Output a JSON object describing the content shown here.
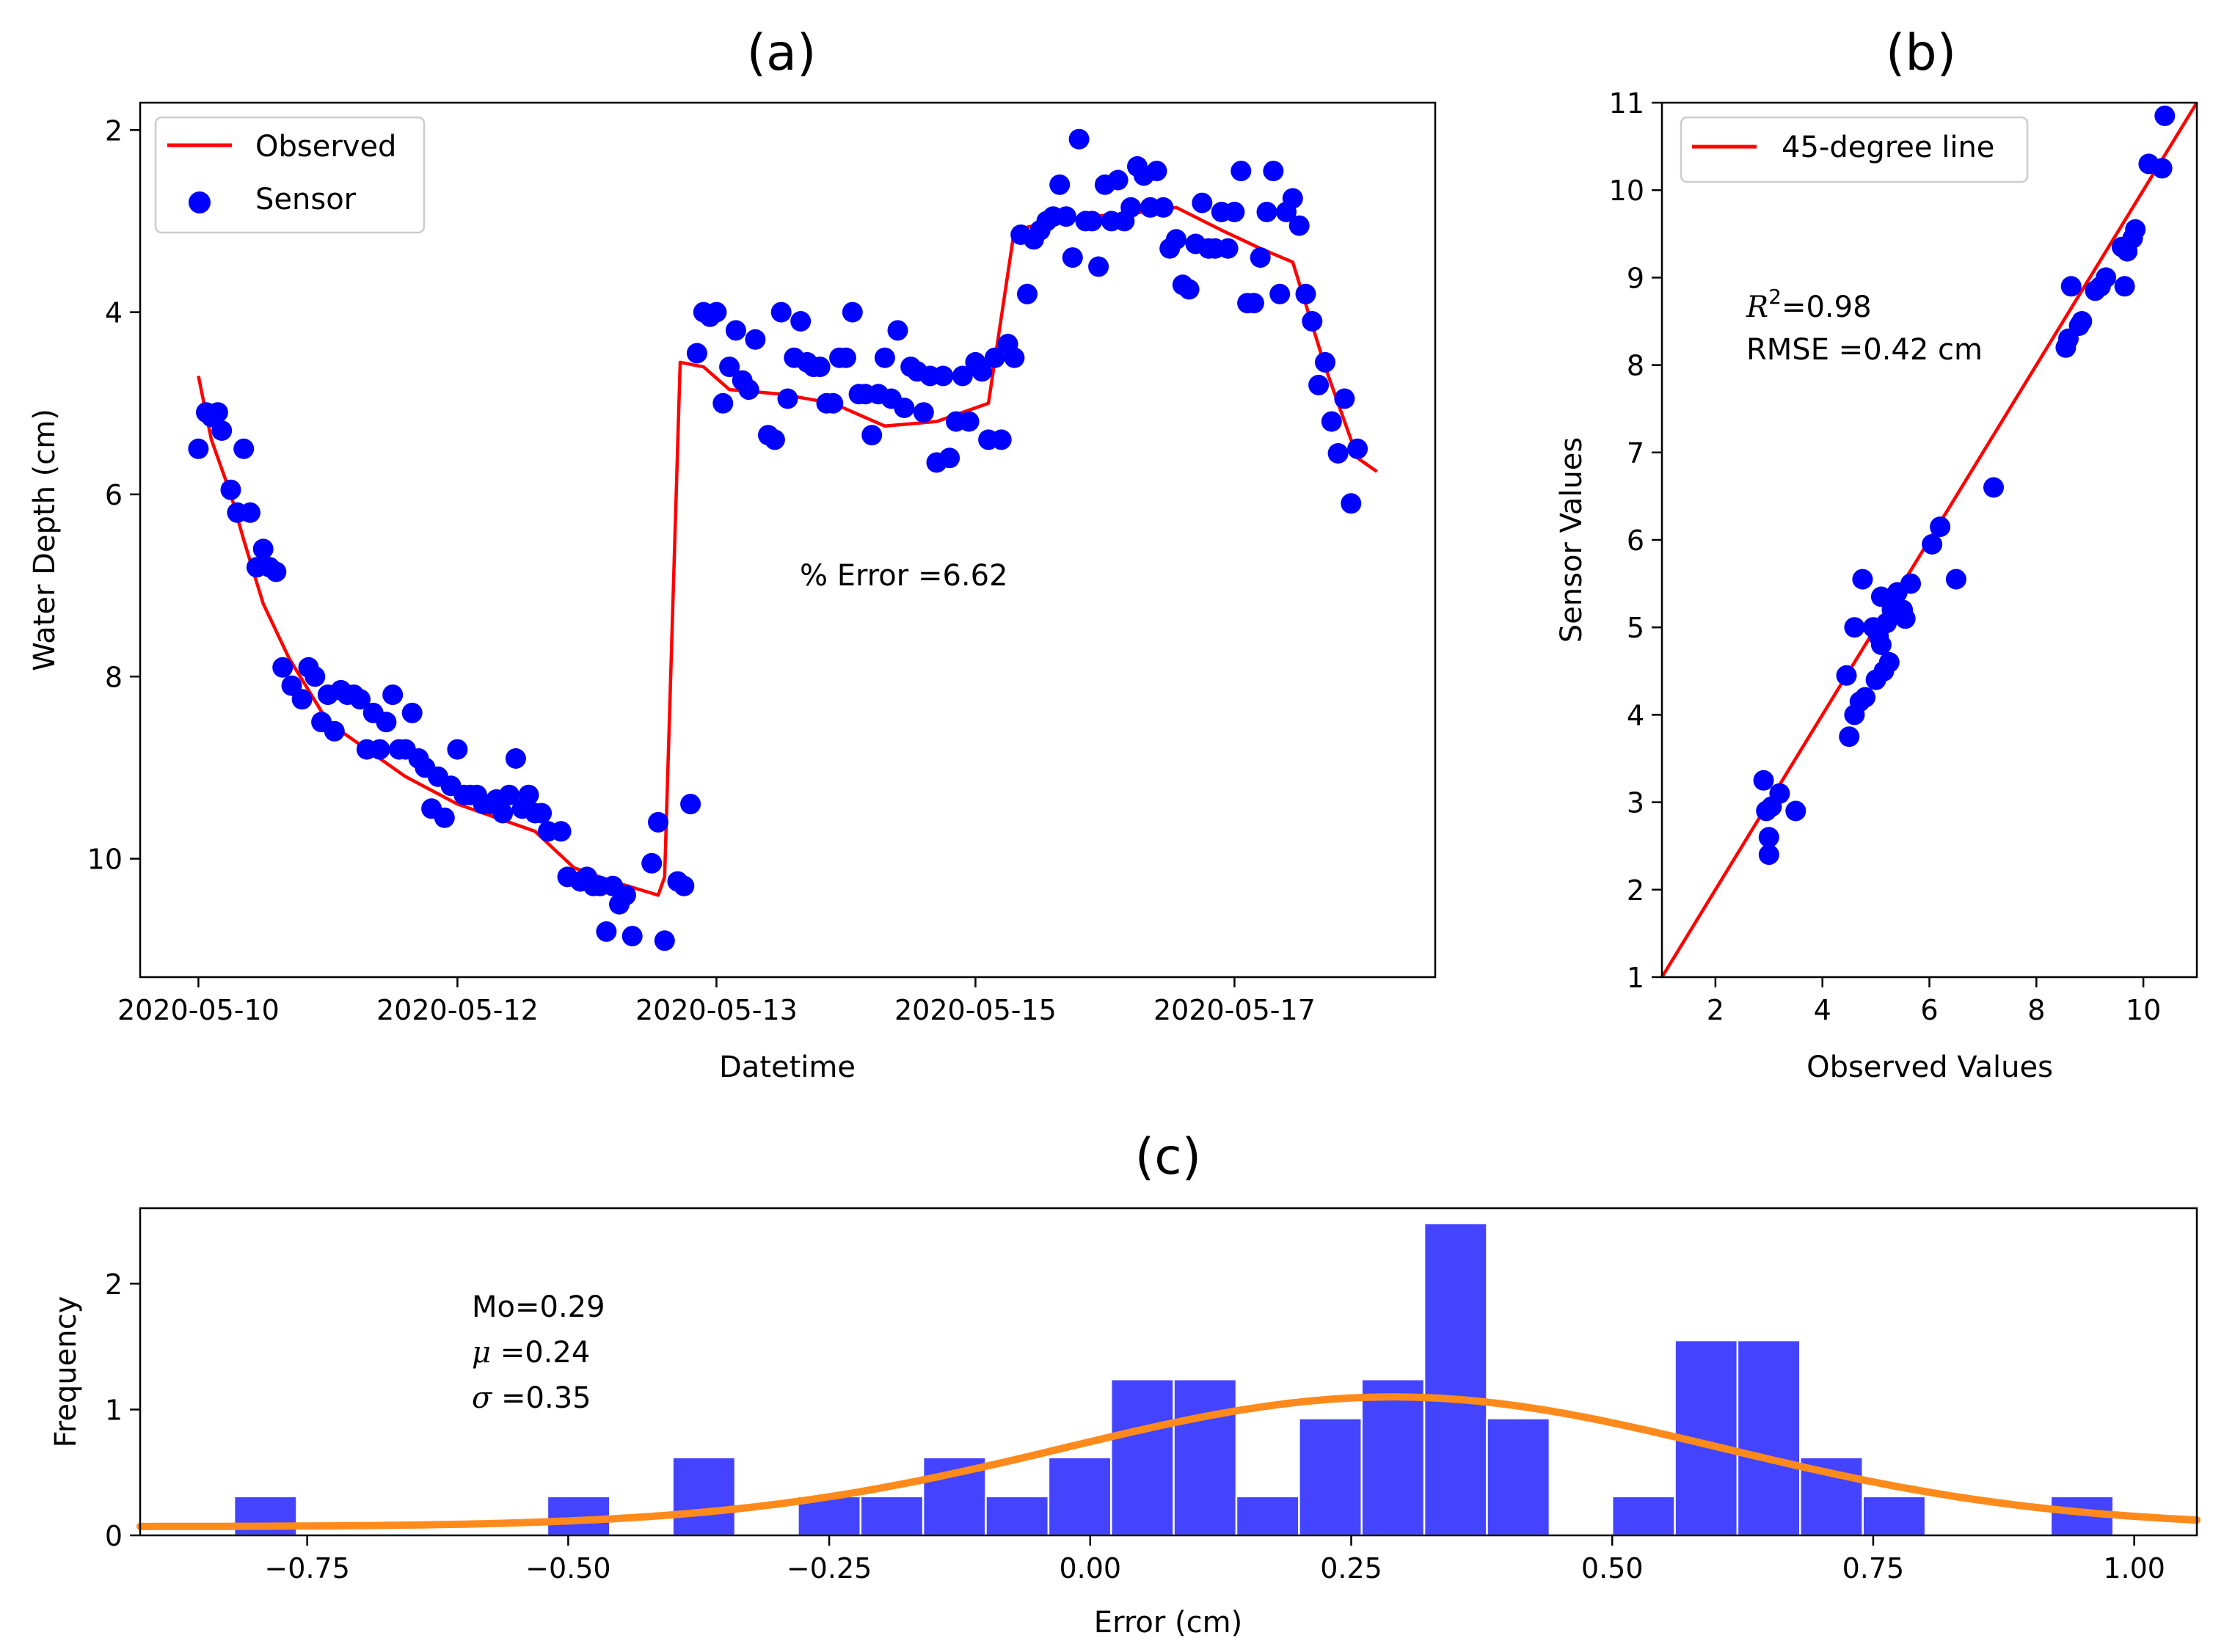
{
  "colors": {
    "observed": "#ff0000",
    "sensor": "#0000ff",
    "line45": "#ff0000",
    "hist_bar": "#4444ff",
    "hist_edge": "#ffffff",
    "kde": "#ff8a1c",
    "legend_border": "#cccccc"
  },
  "chart_data": [
    {
      "id": "a",
      "panel_label": "(a)",
      "type": "line+scatter",
      "xlabel": "Datetime",
      "ylabel": "Water Depth (cm)",
      "y_inverted": true,
      "xlim": [
        -0.45,
        9.55
      ],
      "ylim": [
        11.3,
        1.7
      ],
      "x_ticks": [
        {
          "v": 0,
          "label": "2020-05-10"
        },
        {
          "v": 2,
          "label": "2020-05-12"
        },
        {
          "v": 4,
          "label": "2020-05-13"
        },
        {
          "v": 6,
          "label": "2020-05-15"
        },
        {
          "v": 8,
          "label": "2020-05-17"
        }
      ],
      "y_ticks": [
        {
          "v": 2,
          "label": "2"
        },
        {
          "v": 4,
          "label": "4"
        },
        {
          "v": 6,
          "label": "6"
        },
        {
          "v": 8,
          "label": "8"
        },
        {
          "v": 10,
          "label": "10"
        }
      ],
      "annotation": "% Error =6.62",
      "legend": {
        "position": "upper left",
        "entries": [
          {
            "label": "Observed",
            "kind": "line"
          },
          {
            "label": "Sensor",
            "kind": "marker"
          }
        ]
      },
      "observed": [
        [
          0,
          4.7
        ],
        [
          0.1,
          5.4
        ],
        [
          0.25,
          6.0
        ],
        [
          0.35,
          6.5
        ],
        [
          0.5,
          7.2
        ],
        [
          0.7,
          7.8
        ],
        [
          1.0,
          8.5
        ],
        [
          1.3,
          8.8
        ],
        [
          1.6,
          9.1
        ],
        [
          2.0,
          9.4
        ],
        [
          2.3,
          9.55
        ],
        [
          2.6,
          9.7
        ],
        [
          2.9,
          10.1
        ],
        [
          3.2,
          10.25
        ],
        [
          3.55,
          10.4
        ],
        [
          3.6,
          10.2
        ],
        [
          3.72,
          4.55
        ],
        [
          3.9,
          4.6
        ],
        [
          4.1,
          4.85
        ],
        [
          4.5,
          4.9
        ],
        [
          4.9,
          5.0
        ],
        [
          5.3,
          5.25
        ],
        [
          5.7,
          5.2
        ],
        [
          6.1,
          5.0
        ],
        [
          6.3,
          3.1
        ],
        [
          6.6,
          3.0
        ],
        [
          6.9,
          2.95
        ],
        [
          7.3,
          2.9
        ],
        [
          7.55,
          2.85
        ],
        [
          7.9,
          3.1
        ],
        [
          8.2,
          3.3
        ],
        [
          8.45,
          3.45
        ],
        [
          8.7,
          4.6
        ],
        [
          8.95,
          5.6
        ],
        [
          9.1,
          5.75
        ]
      ],
      "sensor": [
        [
          0.0,
          5.5
        ],
        [
          0.06,
          5.1
        ],
        [
          0.1,
          5.15
        ],
        [
          0.15,
          5.1
        ],
        [
          0.18,
          5.3
        ],
        [
          0.25,
          5.95
        ],
        [
          0.3,
          6.2
        ],
        [
          0.35,
          5.5
        ],
        [
          0.4,
          6.2
        ],
        [
          0.45,
          6.8
        ],
        [
          0.5,
          6.6
        ],
        [
          0.55,
          6.8
        ],
        [
          0.6,
          6.85
        ],
        [
          0.65,
          7.9
        ],
        [
          0.72,
          8.1
        ],
        [
          0.8,
          8.25
        ],
        [
          0.85,
          7.9
        ],
        [
          0.9,
          8.0
        ],
        [
          0.95,
          8.5
        ],
        [
          1.0,
          8.2
        ],
        [
          1.05,
          8.6
        ],
        [
          1.1,
          8.15
        ],
        [
          1.15,
          8.2
        ],
        [
          1.2,
          8.2
        ],
        [
          1.25,
          8.25
        ],
        [
          1.3,
          8.8
        ],
        [
          1.35,
          8.4
        ],
        [
          1.4,
          8.8
        ],
        [
          1.45,
          8.5
        ],
        [
          1.5,
          8.2
        ],
        [
          1.55,
          8.8
        ],
        [
          1.6,
          8.8
        ],
        [
          1.65,
          8.4
        ],
        [
          1.7,
          8.9
        ],
        [
          1.75,
          9.0
        ],
        [
          1.8,
          9.45
        ],
        [
          1.85,
          9.1
        ],
        [
          1.9,
          9.55
        ],
        [
          1.95,
          9.2
        ],
        [
          2.0,
          8.8
        ],
        [
          2.05,
          9.3
        ],
        [
          2.1,
          9.3
        ],
        [
          2.15,
          9.3
        ],
        [
          2.2,
          9.4
        ],
        [
          2.25,
          9.4
        ],
        [
          2.3,
          9.35
        ],
        [
          2.35,
          9.5
        ],
        [
          2.4,
          9.3
        ],
        [
          2.45,
          8.9
        ],
        [
          2.5,
          9.45
        ],
        [
          2.55,
          9.3
        ],
        [
          2.6,
          9.5
        ],
        [
          2.65,
          9.5
        ],
        [
          2.7,
          9.7
        ],
        [
          2.8,
          9.7
        ],
        [
          2.85,
          10.2
        ],
        [
          2.95,
          10.25
        ],
        [
          3.0,
          10.2
        ],
        [
          3.05,
          10.3
        ],
        [
          3.1,
          10.3
        ],
        [
          3.15,
          10.8
        ],
        [
          3.2,
          10.3
        ],
        [
          3.25,
          10.5
        ],
        [
          3.3,
          10.4
        ],
        [
          3.35,
          10.85
        ],
        [
          3.5,
          10.05
        ],
        [
          3.55,
          9.6
        ],
        [
          3.6,
          10.9
        ],
        [
          3.7,
          10.25
        ],
        [
          3.75,
          10.3
        ],
        [
          3.8,
          9.4
        ],
        [
          3.85,
          4.45
        ],
        [
          3.9,
          4.0
        ],
        [
          3.95,
          4.05
        ],
        [
          4.0,
          4.0
        ],
        [
          4.05,
          5.0
        ],
        [
          4.1,
          4.6
        ],
        [
          4.15,
          4.2
        ],
        [
          4.2,
          4.75
        ],
        [
          4.25,
          4.85
        ],
        [
          4.3,
          4.3
        ],
        [
          4.4,
          5.35
        ],
        [
          4.45,
          5.4
        ],
        [
          4.5,
          4.0
        ],
        [
          4.55,
          4.95
        ],
        [
          4.6,
          4.5
        ],
        [
          4.65,
          4.1
        ],
        [
          4.7,
          4.55
        ],
        [
          4.75,
          4.6
        ],
        [
          4.8,
          4.6
        ],
        [
          4.85,
          5.0
        ],
        [
          4.9,
          5.0
        ],
        [
          4.95,
          4.5
        ],
        [
          5.0,
          4.5
        ],
        [
          5.05,
          4.0
        ],
        [
          5.1,
          4.9
        ],
        [
          5.15,
          4.9
        ],
        [
          5.2,
          5.35
        ],
        [
          5.25,
          4.9
        ],
        [
          5.3,
          4.5
        ],
        [
          5.35,
          4.95
        ],
        [
          5.4,
          4.2
        ],
        [
          5.45,
          5.05
        ],
        [
          5.5,
          4.6
        ],
        [
          5.55,
          4.65
        ],
        [
          5.6,
          5.1
        ],
        [
          5.65,
          4.7
        ],
        [
          5.7,
          5.65
        ],
        [
          5.75,
          4.7
        ],
        [
          5.8,
          5.6
        ],
        [
          5.85,
          5.2
        ],
        [
          5.9,
          4.7
        ],
        [
          5.95,
          5.2
        ],
        [
          6.0,
          4.55
        ],
        [
          6.05,
          4.65
        ],
        [
          6.1,
          5.4
        ],
        [
          6.15,
          4.5
        ],
        [
          6.2,
          5.4
        ],
        [
          6.25,
          4.35
        ],
        [
          6.3,
          4.5
        ],
        [
          6.35,
          3.15
        ],
        [
          6.4,
          3.8
        ],
        [
          6.45,
          3.2
        ],
        [
          6.5,
          3.1
        ],
        [
          6.55,
          3.0
        ],
        [
          6.6,
          2.95
        ],
        [
          6.65,
          2.6
        ],
        [
          6.7,
          2.95
        ],
        [
          6.75,
          3.4
        ],
        [
          6.8,
          2.1
        ],
        [
          6.85,
          3.0
        ],
        [
          6.9,
          3.0
        ],
        [
          6.95,
          3.5
        ],
        [
          7.0,
          2.6
        ],
        [
          7.05,
          3.0
        ],
        [
          7.1,
          2.55
        ],
        [
          7.15,
          3.0
        ],
        [
          7.2,
          2.85
        ],
        [
          7.25,
          2.4
        ],
        [
          7.3,
          2.5
        ],
        [
          7.35,
          2.85
        ],
        [
          7.4,
          2.45
        ],
        [
          7.45,
          2.85
        ],
        [
          7.5,
          3.3
        ],
        [
          7.55,
          3.2
        ],
        [
          7.6,
          3.7
        ],
        [
          7.65,
          3.75
        ],
        [
          7.7,
          3.25
        ],
        [
          7.75,
          2.8
        ],
        [
          7.8,
          3.3
        ],
        [
          7.85,
          3.3
        ],
        [
          7.9,
          2.9
        ],
        [
          7.95,
          3.3
        ],
        [
          8.0,
          2.9
        ],
        [
          8.05,
          2.45
        ],
        [
          8.1,
          3.9
        ],
        [
          8.15,
          3.9
        ],
        [
          8.2,
          3.4
        ],
        [
          8.25,
          2.9
        ],
        [
          8.3,
          2.45
        ],
        [
          8.35,
          3.8
        ],
        [
          8.4,
          2.9
        ],
        [
          8.45,
          2.75
        ],
        [
          8.5,
          3.05
        ],
        [
          8.55,
          3.8
        ],
        [
          8.6,
          4.1
        ],
        [
          8.65,
          4.8
        ],
        [
          8.7,
          4.55
        ],
        [
          8.75,
          5.2
        ],
        [
          8.8,
          5.55
        ],
        [
          8.85,
          4.95
        ],
        [
          8.9,
          6.1
        ],
        [
          8.95,
          5.5
        ]
      ]
    },
    {
      "id": "b",
      "panel_label": "(b)",
      "type": "scatter",
      "xlabel": "Observed Values",
      "ylabel": "Sensor Values",
      "xlim": [
        1.0,
        11.0
      ],
      "ylim": [
        1.0,
        11.0
      ],
      "x_ticks": [
        {
          "v": 2,
          "label": "2"
        },
        {
          "v": 4,
          "label": "4"
        },
        {
          "v": 6,
          "label": "6"
        },
        {
          "v": 8,
          "label": "8"
        },
        {
          "v": 10,
          "label": "10"
        }
      ],
      "y_ticks": [
        {
          "v": 1,
          "label": "1"
        },
        {
          "v": 2,
          "label": "2"
        },
        {
          "v": 3,
          "label": "3"
        },
        {
          "v": 4,
          "label": "4"
        },
        {
          "v": 5,
          "label": "5"
        },
        {
          "v": 6,
          "label": "6"
        },
        {
          "v": 7,
          "label": "7"
        },
        {
          "v": 8,
          "label": "8"
        },
        {
          "v": 9,
          "label": "9"
        },
        {
          "v": 10,
          "label": "10"
        },
        {
          "v": 11,
          "label": "11"
        }
      ],
      "legend": {
        "position": "upper left",
        "entries": [
          {
            "label": "45-degree line",
            "kind": "line"
          }
        ]
      },
      "r2_label": "R",
      "r2_sup": "2",
      "r2_value": "=0.98",
      "rmse_text": "RMSE =0.42 cm",
      "line": [
        [
          1,
          1
        ],
        [
          11,
          11
        ]
      ],
      "points": [
        [
          2.9,
          3.25
        ],
        [
          2.95,
          2.9
        ],
        [
          3.0,
          2.6
        ],
        [
          3.0,
          2.4
        ],
        [
          3.05,
          2.95
        ],
        [
          3.2,
          3.1
        ],
        [
          3.5,
          2.9
        ],
        [
          4.45,
          4.45
        ],
        [
          4.5,
          3.75
        ],
        [
          4.6,
          5.0
        ],
        [
          4.6,
          4.0
        ],
        [
          4.7,
          4.15
        ],
        [
          4.75,
          5.55
        ],
        [
          4.8,
          4.2
        ],
        [
          4.95,
          5.0
        ],
        [
          5.0,
          4.4
        ],
        [
          5.05,
          4.9
        ],
        [
          5.1,
          5.35
        ],
        [
          5.1,
          4.8
        ],
        [
          5.15,
          4.5
        ],
        [
          5.2,
          5.05
        ],
        [
          5.25,
          4.6
        ],
        [
          5.3,
          5.2
        ],
        [
          5.4,
          5.4
        ],
        [
          5.5,
          5.2
        ],
        [
          5.55,
          5.1
        ],
        [
          5.65,
          5.5
        ],
        [
          6.05,
          5.95
        ],
        [
          6.2,
          6.15
        ],
        [
          6.5,
          5.55
        ],
        [
          7.2,
          6.6
        ],
        [
          8.55,
          8.2
        ],
        [
          8.6,
          8.3
        ],
        [
          8.65,
          8.9
        ],
        [
          8.8,
          8.45
        ],
        [
          8.85,
          8.5
        ],
        [
          9.1,
          8.85
        ],
        [
          9.2,
          8.9
        ],
        [
          9.3,
          9.0
        ],
        [
          9.6,
          9.35
        ],
        [
          9.65,
          8.9
        ],
        [
          9.7,
          9.3
        ],
        [
          9.8,
          9.45
        ],
        [
          9.85,
          9.55
        ],
        [
          10.1,
          10.3
        ],
        [
          10.35,
          10.25
        ],
        [
          10.4,
          10.85
        ]
      ]
    },
    {
      "id": "c",
      "panel_label": "(c)",
      "type": "histogram+kde",
      "xlabel": "Error (cm)",
      "ylabel": "Frequency",
      "xlim": [
        -0.91,
        1.06
      ],
      "ylim": [
        0,
        2.6
      ],
      "x_ticks": [
        {
          "v": -0.75,
          "label": "−0.75"
        },
        {
          "v": -0.5,
          "label": "−0.50"
        },
        {
          "v": -0.25,
          "label": "−0.25"
        },
        {
          "v": 0.0,
          "label": "0.00"
        },
        {
          "v": 0.25,
          "label": "0.25"
        },
        {
          "v": 0.5,
          "label": "0.50"
        },
        {
          "v": 0.75,
          "label": "0.75"
        },
        {
          "v": 1.0,
          "label": "1.00"
        }
      ],
      "y_ticks": [
        {
          "v": 0,
          "label": "0"
        },
        {
          "v": 1,
          "label": "1"
        },
        {
          "v": 2,
          "label": "2"
        }
      ],
      "stats": [
        {
          "label": "Mo",
          "italic": false,
          "value": "=0.29"
        },
        {
          "label": "μ",
          "italic": true,
          "value": " =0.24"
        },
        {
          "label": "σ",
          "italic": true,
          "value": " =0.35"
        }
      ],
      "kde": {
        "mean": 0.29,
        "sd": 0.315,
        "peak": 1.1,
        "floor": 0.07
      },
      "bins": [
        {
          "x0": -0.82,
          "x1": -0.76,
          "h": 0.31
        },
        {
          "x0": -0.52,
          "x1": -0.46,
          "h": 0.31
        },
        {
          "x0": -0.4,
          "x1": -0.34,
          "h": 0.62
        },
        {
          "x0": -0.28,
          "x1": -0.22,
          "h": 0.31
        },
        {
          "x0": -0.22,
          "x1": -0.16,
          "h": 0.31
        },
        {
          "x0": -0.16,
          "x1": -0.1,
          "h": 0.62
        },
        {
          "x0": -0.1,
          "x1": -0.04,
          "h": 0.31
        },
        {
          "x0": -0.04,
          "x1": 0.02,
          "h": 0.62
        },
        {
          "x0": 0.02,
          "x1": 0.08,
          "h": 1.24
        },
        {
          "x0": 0.08,
          "x1": 0.14,
          "h": 1.24
        },
        {
          "x0": 0.14,
          "x1": 0.2,
          "h": 0.31
        },
        {
          "x0": 0.2,
          "x1": 0.26,
          "h": 0.93
        },
        {
          "x0": 0.26,
          "x1": 0.32,
          "h": 1.24
        },
        {
          "x0": 0.32,
          "x1": 0.38,
          "h": 2.48
        },
        {
          "x0": 0.38,
          "x1": 0.44,
          "h": 0.93
        },
        {
          "x0": 0.5,
          "x1": 0.56,
          "h": 0.31
        },
        {
          "x0": 0.56,
          "x1": 0.62,
          "h": 1.55
        },
        {
          "x0": 0.62,
          "x1": 0.68,
          "h": 1.55
        },
        {
          "x0": 0.68,
          "x1": 0.74,
          "h": 0.62
        },
        {
          "x0": 0.74,
          "x1": 0.8,
          "h": 0.31
        },
        {
          "x0": 0.92,
          "x1": 0.98,
          "h": 0.31
        }
      ]
    }
  ]
}
